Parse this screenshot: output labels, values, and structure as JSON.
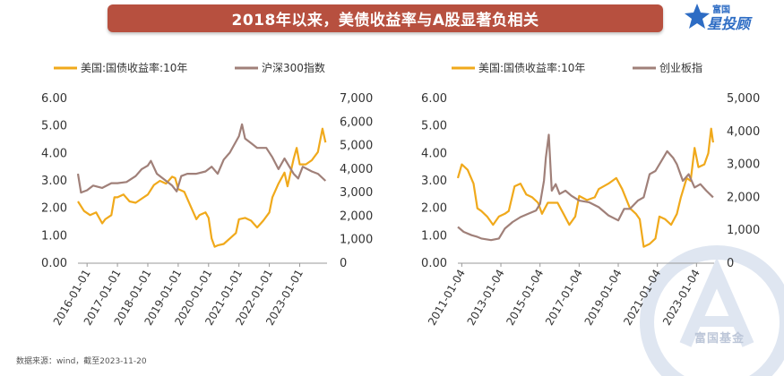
{
  "header": {
    "title": "2018年以来，美债收益率与A股显著负相关",
    "logo_top": "富国",
    "logo_bottom": "星投顾"
  },
  "watermark_text": "富国基金",
  "source": "数据来源：wind，截至2023-11-20",
  "colors": {
    "yield": "#f0a91b",
    "index": "#a08079",
    "banner": "#b7503f"
  },
  "chart_data": [
    {
      "type": "line",
      "series": [
        {
          "name": "美国:国债收益率:10年",
          "axis": "left",
          "x": [
            2015.7,
            2015.9,
            2016.1,
            2016.3,
            2016.5,
            2016.6,
            2016.8,
            2016.9,
            2017.0,
            2017.2,
            2017.4,
            2017.6,
            2017.8,
            2018.0,
            2018.2,
            2018.4,
            2018.6,
            2018.8,
            2018.9,
            2019.0,
            2019.2,
            2019.4,
            2019.6,
            2019.7,
            2019.9,
            2020.0,
            2020.1,
            2020.2,
            2020.3,
            2020.5,
            2020.7,
            2020.9,
            2021.0,
            2021.2,
            2021.4,
            2021.6,
            2021.8,
            2022.0,
            2022.1,
            2022.3,
            2022.5,
            2022.6,
            2022.8,
            2022.9,
            2023.0,
            2023.2,
            2023.4,
            2023.6,
            2023.75,
            2023.85
          ],
          "values": [
            2.25,
            1.9,
            1.75,
            1.85,
            1.45,
            1.6,
            1.75,
            2.4,
            2.4,
            2.5,
            2.25,
            2.2,
            2.35,
            2.5,
            2.85,
            3.0,
            2.9,
            3.15,
            3.1,
            2.7,
            2.6,
            2.1,
            1.6,
            1.75,
            1.85,
            1.65,
            0.9,
            0.6,
            0.65,
            0.7,
            0.9,
            1.1,
            1.6,
            1.65,
            1.55,
            1.3,
            1.55,
            1.85,
            2.4,
            2.9,
            3.3,
            2.8,
            3.8,
            4.2,
            3.6,
            3.6,
            3.75,
            4.05,
            4.9,
            4.4
          ]
        },
        {
          "name": "沪深300指数",
          "axis": "right",
          "x": [
            2015.7,
            2015.8,
            2016.0,
            2016.2,
            2016.5,
            2016.8,
            2017.0,
            2017.3,
            2017.6,
            2017.8,
            2018.0,
            2018.1,
            2018.3,
            2018.5,
            2018.8,
            2018.95,
            2019.1,
            2019.3,
            2019.6,
            2019.9,
            2020.1,
            2020.3,
            2020.5,
            2020.7,
            2021.0,
            2021.1,
            2021.2,
            2021.4,
            2021.6,
            2021.9,
            2022.1,
            2022.3,
            2022.5,
            2022.8,
            2022.95,
            2023.1,
            2023.4,
            2023.6,
            2023.85
          ],
          "values": [
            3800,
            3000,
            3100,
            3300,
            3200,
            3400,
            3400,
            3450,
            3700,
            4000,
            4150,
            4350,
            3800,
            3600,
            3300,
            3050,
            3700,
            3800,
            3800,
            3900,
            4100,
            3800,
            4400,
            4700,
            5400,
            5900,
            5300,
            5100,
            4900,
            4900,
            4500,
            4000,
            4450,
            3800,
            3600,
            4100,
            3900,
            3800,
            3500
          ]
        }
      ],
      "x_ticks": [
        "2016-01-01",
        "2017-01-01",
        "2018-01-01",
        "2019-01-01",
        "2020-01-01",
        "2021-01-01",
        "2022-01-01",
        "2023-01-01"
      ],
      "x_tick_values": [
        2016.0,
        2017.0,
        2018.0,
        2019.0,
        2020.0,
        2021.0,
        2022.0,
        2023.0
      ],
      "xlim": [
        2015.7,
        2023.9
      ],
      "ylim": [
        0,
        6
      ],
      "y_ticks": [
        "0.00",
        "1.00",
        "2.00",
        "3.00",
        "4.00",
        "5.00",
        "6.00"
      ],
      "y2lim": [
        0,
        7000
      ],
      "y2_ticks": [
        "0",
        "1,000",
        "2,000",
        "3,000",
        "4,000",
        "5,000",
        "6,000",
        "7,000"
      ],
      "legend": "top"
    },
    {
      "type": "line",
      "series": [
        {
          "name": "美国:国债收益率:10年",
          "axis": "left",
          "x": [
            2010.8,
            2011.0,
            2011.3,
            2011.6,
            2011.8,
            2012.0,
            2012.3,
            2012.6,
            2012.9,
            2013.2,
            2013.4,
            2013.7,
            2014.0,
            2014.3,
            2014.6,
            2014.9,
            2015.1,
            2015.4,
            2015.7,
            2015.9,
            2016.2,
            2016.5,
            2016.8,
            2017.0,
            2017.4,
            2017.8,
            2018.0,
            2018.5,
            2018.9,
            2019.2,
            2019.6,
            2019.9,
            2020.1,
            2020.3,
            2020.6,
            2020.9,
            2021.1,
            2021.4,
            2021.7,
            2022.0,
            2022.2,
            2022.5,
            2022.7,
            2022.9,
            2023.1,
            2023.4,
            2023.6,
            2023.75,
            2023.85
          ],
          "values": [
            3.1,
            3.6,
            3.4,
            2.9,
            2.0,
            1.9,
            1.7,
            1.4,
            1.7,
            1.8,
            1.9,
            2.8,
            2.9,
            2.5,
            2.4,
            2.2,
            1.8,
            2.2,
            2.2,
            2.2,
            1.8,
            1.4,
            1.7,
            2.45,
            2.3,
            2.4,
            2.7,
            2.9,
            3.1,
            2.7,
            2.0,
            1.8,
            1.6,
            0.6,
            0.7,
            0.9,
            1.7,
            1.6,
            1.4,
            1.8,
            2.4,
            3.1,
            3.0,
            4.2,
            3.5,
            3.6,
            4.0,
            4.9,
            4.4
          ]
        },
        {
          "name": "创业板指",
          "axis": "right",
          "x": [
            2010.8,
            2011.1,
            2011.5,
            2011.8,
            2012.0,
            2012.5,
            2012.9,
            2013.2,
            2013.6,
            2014.0,
            2014.4,
            2014.8,
            2015.0,
            2015.2,
            2015.3,
            2015.45,
            2015.6,
            2015.8,
            2016.0,
            2016.3,
            2016.6,
            2017.0,
            2017.5,
            2018.0,
            2018.5,
            2019.0,
            2019.3,
            2019.6,
            2020.0,
            2020.3,
            2020.6,
            2020.9,
            2021.2,
            2021.5,
            2021.8,
            2022.0,
            2022.3,
            2022.6,
            2022.9,
            2023.2,
            2023.5,
            2023.85
          ],
          "values": [
            1100,
            950,
            850,
            800,
            750,
            700,
            750,
            1050,
            1250,
            1400,
            1500,
            1600,
            1800,
            2500,
            3200,
            3900,
            2200,
            2400,
            2100,
            2200,
            2050,
            1900,
            1850,
            1700,
            1450,
            1300,
            1650,
            1650,
            1900,
            2000,
            2700,
            2800,
            3100,
            3400,
            3200,
            3000,
            2500,
            2700,
            2300,
            2400,
            2200,
            2000
          ]
        }
      ],
      "x_ticks": [
        "2011-01-04",
        "2013-01-04",
        "2015-01-04",
        "2017-01-04",
        "2019-01-04",
        "2021-01-04",
        "2023-01-04"
      ],
      "x_tick_values": [
        2011.0,
        2013.0,
        2015.0,
        2017.0,
        2019.0,
        2021.0,
        2023.0
      ],
      "xlim": [
        2010.8,
        2023.9
      ],
      "ylim": [
        0,
        6
      ],
      "y_ticks": [
        "0.00",
        "1.00",
        "2.00",
        "3.00",
        "4.00",
        "5.00",
        "6.00"
      ],
      "y2lim": [
        0,
        5000
      ],
      "y2_ticks": [
        "0",
        "1,000",
        "2,000",
        "3,000",
        "4,000",
        "5,000"
      ],
      "legend": "top"
    }
  ]
}
